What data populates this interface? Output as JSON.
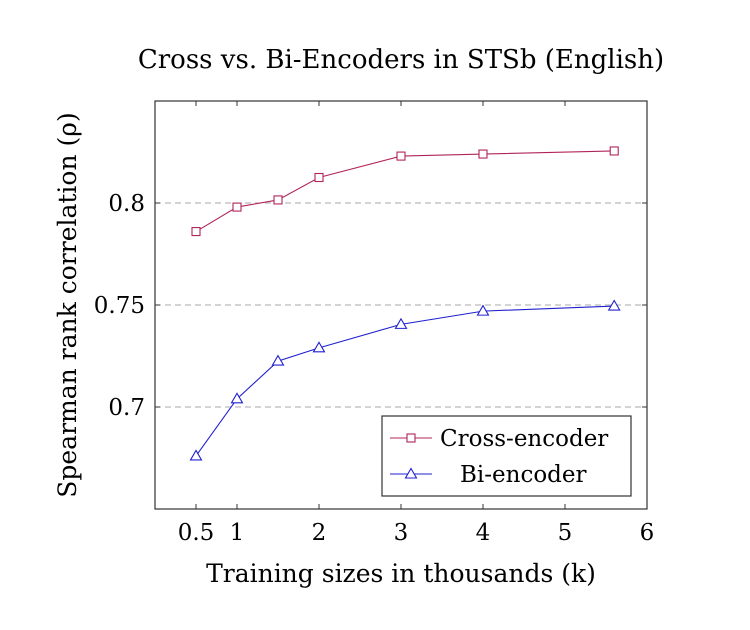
{
  "chart_data": {
    "type": "line",
    "title": "Cross vs. Bi-Encoders in STSb (English)",
    "xlabel": "Training sizes in thousands (k)",
    "ylabel": "Spearman rank correlation (ρ)",
    "xlim": [
      0,
      6
    ],
    "ylim": [
      0.65,
      0.85
    ],
    "xticks": [
      0.5,
      1,
      2,
      3,
      4,
      5,
      6
    ],
    "xtick_labels": [
      "0.5",
      "1",
      "2",
      "3",
      "4",
      "5",
      "6"
    ],
    "yticks": [
      0.7,
      0.75,
      0.8
    ],
    "ytick_labels": [
      "0.7",
      "0.75",
      "0.8"
    ],
    "grid": "horizontal dashed",
    "legend_position": "bottom-right",
    "x": [
      0.5,
      1,
      1.5,
      2,
      3,
      4,
      5.6
    ],
    "series": [
      {
        "name": "Cross-encoder",
        "color": "#b0245a",
        "marker": "square",
        "values": [
          0.786,
          0.798,
          0.8015,
          0.8125,
          0.823,
          0.824,
          0.8255
        ]
      },
      {
        "name": "Bi-encoder",
        "color": "#2020d0",
        "marker": "triangle",
        "values": [
          0.676,
          0.704,
          0.7225,
          0.729,
          0.7405,
          0.747,
          0.7495
        ]
      }
    ]
  }
}
